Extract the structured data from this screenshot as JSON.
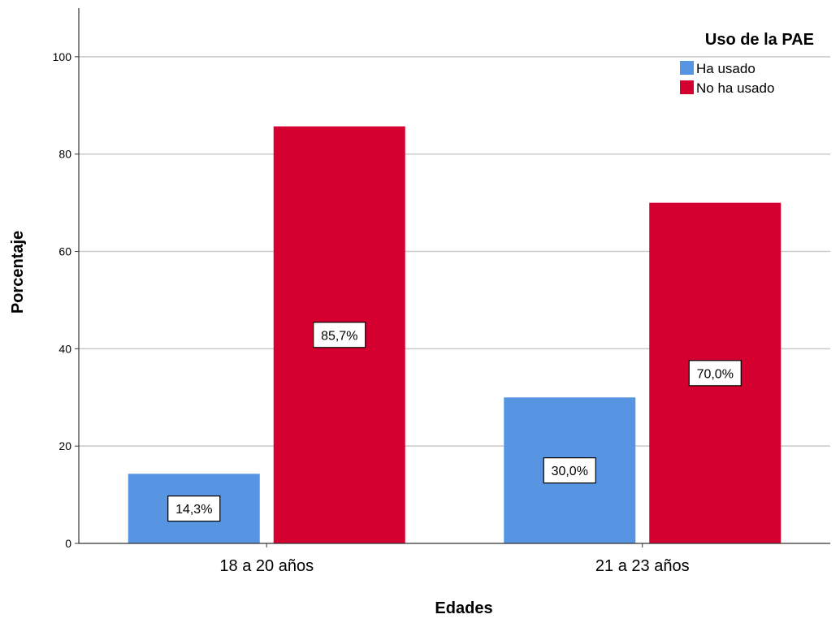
{
  "chart_data": {
    "type": "bar",
    "categories": [
      "18 a 20 años",
      "21 a 23 años"
    ],
    "series": [
      {
        "name": "Ha usado",
        "color": "#5795e2",
        "values": [
          14.3,
          30.0
        ],
        "labels": [
          "14,3%",
          "30,0%"
        ]
      },
      {
        "name": "No ha usado",
        "color": "#d4002f",
        "values": [
          85.7,
          70.0
        ],
        "labels": [
          "85,7%",
          "70,0%"
        ]
      }
    ],
    "title": "",
    "xlabel": "Edades",
    "ylabel": "Porcentaje",
    "ylim": [
      0,
      110
    ],
    "yticks": [
      "0",
      "20",
      "40",
      "60",
      "80",
      "100"
    ],
    "grid": true,
    "legend": {
      "title": "Uso de la PAE",
      "position": "top-right"
    }
  }
}
